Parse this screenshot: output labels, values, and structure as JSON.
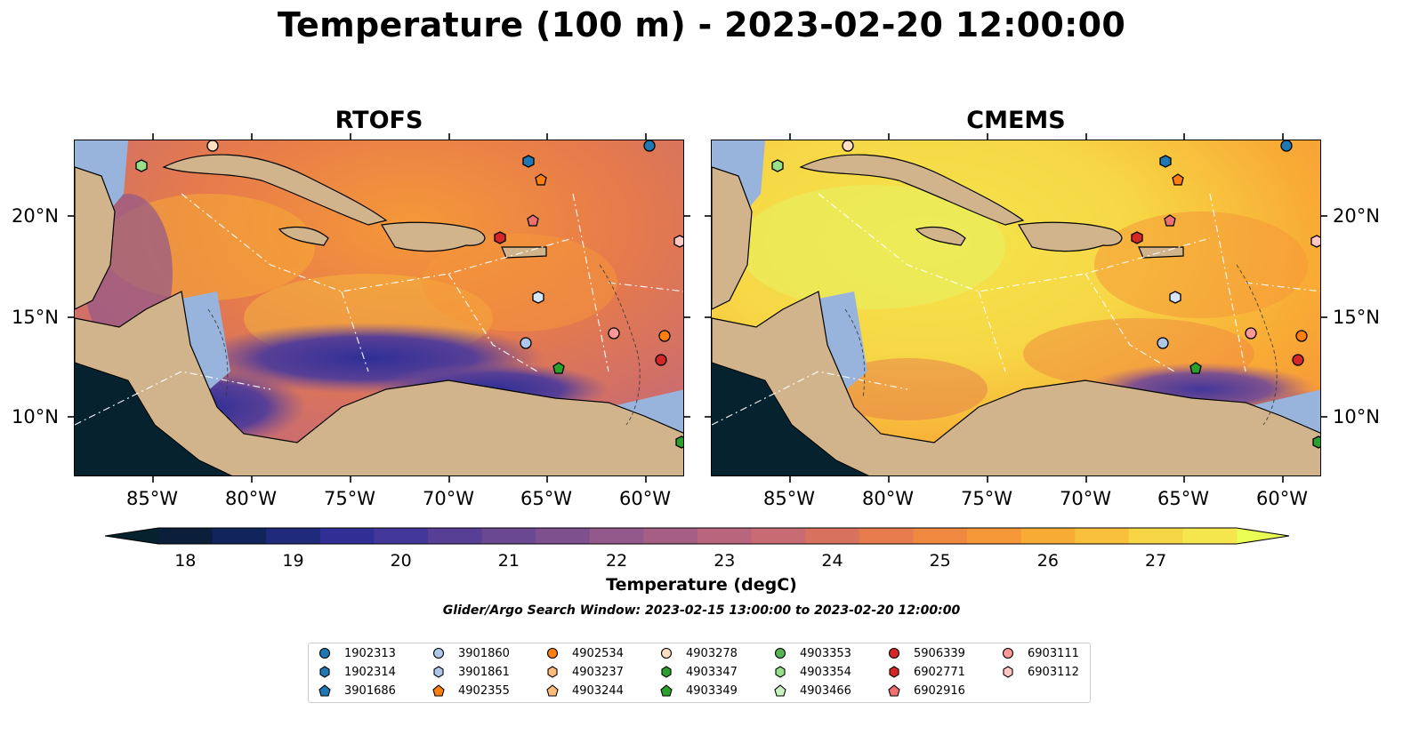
{
  "title": "Temperature (100 m) - 2023-02-20 12:00:00",
  "panels": [
    {
      "title": "RTOFS"
    },
    {
      "title": "CMEMS"
    }
  ],
  "lat_labels": [
    "20°N",
    "15°N",
    "10°N"
  ],
  "lon_labels": [
    "85°W",
    "80°W",
    "75°W",
    "70°W",
    "65°W",
    "60°W"
  ],
  "colorbar": {
    "title": "Temperature (degC)",
    "ticks": [
      "18",
      "19",
      "20",
      "21",
      "22",
      "23",
      "24",
      "25",
      "26",
      "27"
    ],
    "colors": [
      "#0b1f3a",
      "#11245c",
      "#1f2a7a",
      "#2f2f96",
      "#43379a",
      "#583f96",
      "#6b4892",
      "#7e518e",
      "#93598a",
      "#a65f84",
      "#b8657d",
      "#c96b72",
      "#d8725f",
      "#e67b4b",
      "#f08840",
      "#f69838",
      "#f8ab35",
      "#f8c03c",
      "#f7d645",
      "#f4e64c"
    ]
  },
  "search_window": "Glider/Argo Search Window: 2023-02-15 13:00:00 to 2023-02-20 12:00:00",
  "legend": [
    {
      "label": "1902313",
      "color": "#1f77b4",
      "marker": "circle"
    },
    {
      "label": "1902314",
      "color": "#1f77b4",
      "marker": "hexagon"
    },
    {
      "label": "3901686",
      "color": "#1f77b4",
      "marker": "pentagon"
    },
    {
      "label": "3901860",
      "color": "#aec7e8",
      "marker": "circle"
    },
    {
      "label": "3901861",
      "color": "#aec7e8",
      "marker": "hexagon"
    },
    {
      "label": "4902355",
      "color": "#ff7f0e",
      "marker": "pentagon"
    },
    {
      "label": "4902534",
      "color": "#ff7f0e",
      "marker": "circle"
    },
    {
      "label": "4903237",
      "color": "#ffbb78",
      "marker": "hexagon"
    },
    {
      "label": "4903244",
      "color": "#ffbb78",
      "marker": "pentagon"
    },
    {
      "label": "4903278",
      "color": "#ffdfc4",
      "marker": "circle"
    },
    {
      "label": "4903347",
      "color": "#2ca02c",
      "marker": "hexagon"
    },
    {
      "label": "4903349",
      "color": "#2ca02c",
      "marker": "pentagon"
    },
    {
      "label": "4903353",
      "color": "#55b555",
      "marker": "circle"
    },
    {
      "label": "4903354",
      "color": "#98df8a",
      "marker": "hexagon"
    },
    {
      "label": "4903466",
      "color": "#c9f0c0",
      "marker": "pentagon"
    },
    {
      "label": "5906339",
      "color": "#d62728",
      "marker": "circle"
    },
    {
      "label": "6902771",
      "color": "#d62728",
      "marker": "hexagon"
    },
    {
      "label": "6902916",
      "color": "#f07070",
      "marker": "pentagon"
    },
    {
      "label": "6903111",
      "color": "#ff9896",
      "marker": "circle"
    },
    {
      "label": "6903112",
      "color": "#ffc6c4",
      "marker": "hexagon"
    }
  ]
}
